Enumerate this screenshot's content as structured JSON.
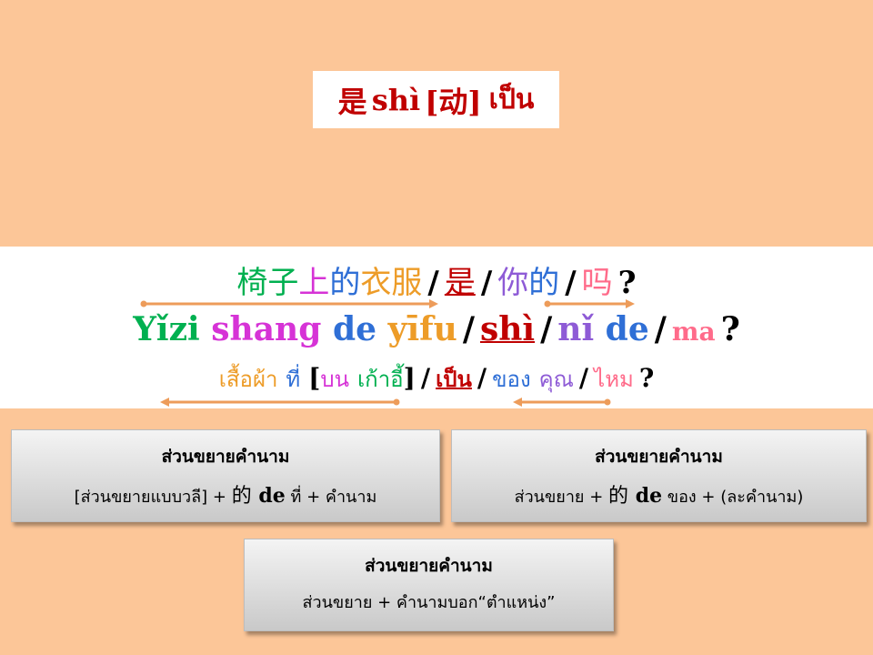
{
  "title": {
    "hanzi": "是",
    "pinyin": "shì",
    "pos": "[动]",
    "thai": "เป็น"
  },
  "sentence": {
    "hanzi": [
      {
        "text": "椅",
        "color": "#00b050"
      },
      {
        "text": "子",
        "color": "#00b050"
      },
      {
        "text": "上",
        "color": "#d633d6"
      },
      {
        "text": "的",
        "color": "#2f6fd6"
      },
      {
        "text": "衣",
        "color": "#ed9c28"
      },
      {
        "text": "服",
        "color": "#ed9c28"
      },
      {
        "text": "/",
        "color": "#000000"
      },
      {
        "text": "是",
        "color": "#c00000"
      },
      {
        "text": "/",
        "color": "#000000"
      },
      {
        "text": "你",
        "color": "#8e5bd6"
      },
      {
        "text": "的",
        "color": "#2f6fd6"
      },
      {
        "text": "/",
        "color": "#000000"
      },
      {
        "text": "吗",
        "color": "#ff6b8a"
      },
      {
        "text": "?",
        "color": "#000000"
      }
    ],
    "pinyin": [
      {
        "text": "Yǐzi",
        "color": "#00b050"
      },
      {
        "text": "shang",
        "color": "#d633d6"
      },
      {
        "text": "de",
        "color": "#2f6fd6"
      },
      {
        "text": "yīfu",
        "color": "#ed9c28"
      },
      {
        "text": "/",
        "color": "#000000"
      },
      {
        "text": "shì",
        "color": "#c00000"
      },
      {
        "text": "/",
        "color": "#000000"
      },
      {
        "text": "nǐ",
        "color": "#8e5bd6"
      },
      {
        "text": "de",
        "color": "#2f6fd6"
      },
      {
        "text": "/",
        "color": "#000000"
      },
      {
        "text": "ma",
        "color": "#ff6b8a"
      },
      {
        "text": "?",
        "color": "#000000"
      }
    ],
    "thai": [
      {
        "text": "เสื้อผ้า",
        "color": "#ed9c28"
      },
      {
        "text": "ที่",
        "color": "#2f6fd6"
      },
      {
        "text": "[",
        "color": "#000000"
      },
      {
        "text": "บน",
        "color": "#d633d6"
      },
      {
        "text": "เก้าอี้",
        "color": "#00b050"
      },
      {
        "text": "]",
        "color": "#000000"
      },
      {
        "text": "/",
        "color": "#000000"
      },
      {
        "text": "เป็น",
        "color": "#c00000"
      },
      {
        "text": "/",
        "color": "#000000"
      },
      {
        "text": "ของ",
        "color": "#2f6fd6"
      },
      {
        "text": "คุณ",
        "color": "#8e5bd6"
      },
      {
        "text": "/",
        "color": "#000000"
      },
      {
        "text": "ไหม",
        "color": "#ff6b8a"
      },
      {
        "text": "?",
        "color": "#000000"
      }
    ],
    "arrow_color": "#ed9c5a"
  },
  "boxes": [
    {
      "heading": "ส่วนขยายคำนาม",
      "parts": [
        "[ส่วนขยายแบบวลี]  +  ",
        "的",
        " de",
        " ที่ + คำนาม"
      ]
    },
    {
      "heading": "ส่วนขยายคำนาม",
      "parts": [
        "ส่วนขยาย  +  ",
        "的",
        " de",
        " ของ + (ละคำนาม)"
      ]
    },
    {
      "heading": "ส่วนขยายคำนาม",
      "parts": [
        "ส่วนขยาย  + คำนามบอก“ตำแหน่ง”"
      ]
    }
  ]
}
